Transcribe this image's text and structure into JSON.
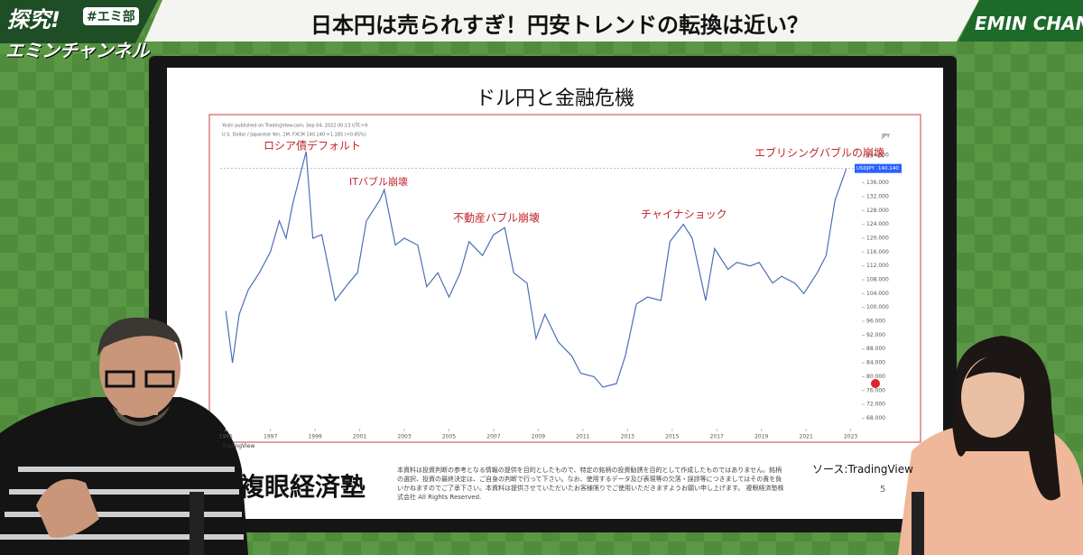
{
  "header": {
    "logo_main": "探究!",
    "logo_tag": "#エミ部",
    "logo_sub": "エミンチャンネル",
    "title": "日本円は売られすぎ！円安トレンドの転換は近い？",
    "channel": "EMIN CHANNEL"
  },
  "slide": {
    "title": "ドル円と金融危機",
    "brand": "複眼経済塾",
    "disclaimer": "本資料は投資判断の参考となる情報の提供を目的としたもので、特定の銘柄の投資勧誘を目的として作成したものではありません。銘柄の選択、投資の最終決定は、ご自身の判断で行って下さい。なお、使用するデータ及び表現等の欠落・誤謬等につきましてはその責を負いかねますのでご了承下さい。本資料は提供させていただいたお客様限りでご使用いただきますようお願い申し上げます。 複眼経済塾株式会社 All Rights Reserved.",
    "source": "ソース:TradingView",
    "page": "5",
    "watermark": "TradingView"
  },
  "chart_data": {
    "type": "line",
    "published": "Yoshi published on TradingView.com, Sep 04, 2022 00:13 UTC+9",
    "symbol_info": "U.S. Dollar / Japanese Yen, 1M, FXCM  140.140 +1.185 (+0.85%)",
    "y_unit": "JPY",
    "last_price": {
      "name": "USDJPY",
      "value": 140.14,
      "label": "140.140"
    },
    "annotations": [
      "ロシア債デフォルト",
      "ITバブル崩壊",
      "不動産バブル崩壊",
      "チャイナショック",
      "エブリシングバブルの崩壊"
    ],
    "color": "#4a6fb5",
    "x": [
      1995.0,
      1995.3,
      1995.6,
      1996.0,
      1996.5,
      1997.0,
      1997.4,
      1997.7,
      1998.0,
      1998.6,
      1998.9,
      1999.3,
      1999.9,
      2000.5,
      2000.9,
      2001.3,
      2001.9,
      2002.1,
      2002.6,
      2003.0,
      2003.6,
      2004.0,
      2004.5,
      2005.0,
      2005.5,
      2005.9,
      2006.5,
      2007.0,
      2007.5,
      2007.9,
      2008.5,
      2008.9,
      2009.3,
      2009.9,
      2010.5,
      2010.9,
      2011.5,
      2011.9,
      2012.5,
      2012.9,
      2013.4,
      2013.9,
      2014.5,
      2014.9,
      2015.5,
      2015.9,
      2016.5,
      2016.9,
      2017.5,
      2017.9,
      2018.5,
      2018.9,
      2019.5,
      2019.9,
      2020.5,
      2020.9,
      2021.5,
      2021.9,
      2022.3,
      2022.8
    ],
    "values": [
      99,
      84,
      98,
      105,
      110,
      116,
      125,
      120,
      130,
      145,
      120,
      121,
      102,
      107,
      110,
      125,
      131,
      134,
      118,
      120,
      118,
      106,
      110,
      103,
      110,
      119,
      115,
      121,
      123,
      110,
      107,
      91,
      98,
      90,
      86,
      81,
      80,
      77,
      78,
      86,
      101,
      103,
      102,
      119,
      124,
      120,
      102,
      117,
      111,
      113,
      112,
      113,
      107,
      109,
      107,
      104,
      110,
      115,
      131,
      140
    ],
    "xlim": [
      1994.75,
      2023.5
    ],
    "xticks": [
      1995,
      1997,
      1999,
      2001,
      2003,
      2005,
      2007,
      2009,
      2011,
      2013,
      2015,
      2017,
      2019,
      2021,
      2023
    ],
    "ylim": [
      65,
      151
    ],
    "yticks": [
      {
        "value": 68,
        "label": "68.000"
      },
      {
        "value": 72,
        "label": "72.000"
      },
      {
        "value": 76,
        "label": "76.000"
      },
      {
        "value": 80,
        "label": "80.000"
      },
      {
        "value": 84,
        "label": "84.000"
      },
      {
        "value": 88,
        "label": "88.000"
      },
      {
        "value": 92,
        "label": "92.000"
      },
      {
        "value": 96,
        "label": "96.000"
      },
      {
        "value": 100,
        "label": "100.000"
      },
      {
        "value": 104,
        "label": "104.000"
      },
      {
        "value": 108,
        "label": "108.000"
      },
      {
        "value": 112,
        "label": "112.000"
      },
      {
        "value": 116,
        "label": "116.000"
      },
      {
        "value": 120,
        "label": "120.000"
      },
      {
        "value": 124,
        "label": "124.000"
      },
      {
        "value": 128,
        "label": "128.000"
      },
      {
        "value": 132,
        "label": "132.000"
      },
      {
        "value": 136,
        "label": "136.000"
      },
      {
        "value": 140,
        "label": "140.000"
      },
      {
        "value": 144,
        "label": "144.000"
      }
    ],
    "grid": false
  }
}
